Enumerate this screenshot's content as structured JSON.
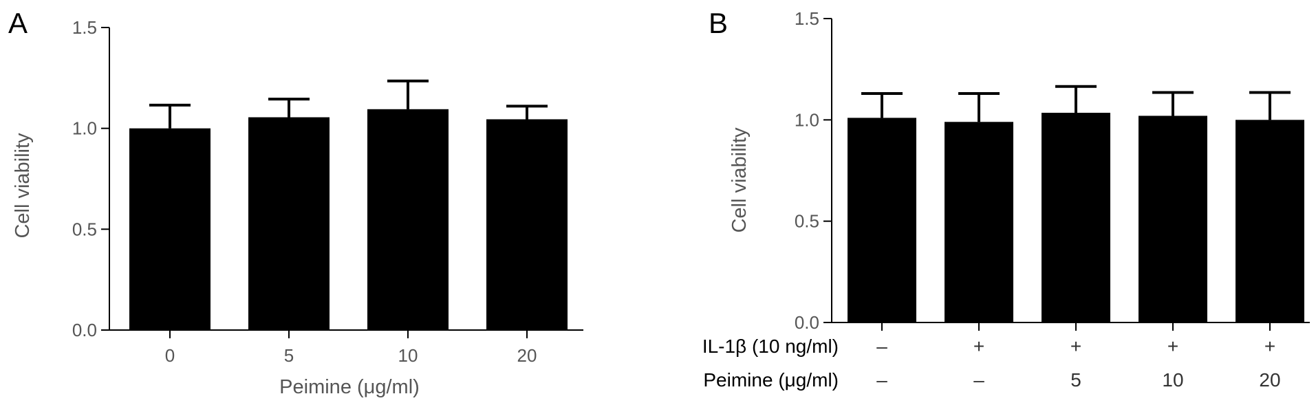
{
  "chart_data": [
    {
      "type": "bar",
      "panel": "A",
      "categories": [
        "0",
        "5",
        "10",
        "20"
      ],
      "values": [
        1.0,
        1.055,
        1.095,
        1.045
      ],
      "errors": [
        0.115,
        0.09,
        0.14,
        0.065
      ],
      "xlabel": "Peimine (μg/ml)",
      "ylabel": "Cell viability",
      "ylim": [
        0,
        1.5
      ],
      "yticks": [
        "0.0",
        "0.5",
        "1.0",
        "1.5"
      ],
      "color": "#000000"
    },
    {
      "type": "bar",
      "panel": "B",
      "values": [
        1.01,
        0.99,
        1.035,
        1.02,
        1.0
      ],
      "errors": [
        0.12,
        0.14,
        0.13,
        0.115,
        0.135
      ],
      "ylabel": "Cell viability",
      "ylim": [
        0,
        1.5
      ],
      "yticks": [
        "0.0",
        "0.5",
        "1.0",
        "1.5"
      ],
      "color": "#000000",
      "rows": [
        {
          "label": "IL-1β (10 ng/ml)",
          "values": [
            "–",
            "+",
            "+",
            "+",
            "+"
          ]
        },
        {
          "label": "Peimine (μg/ml)",
          "values": [
            "–",
            "–",
            "5",
            "10",
            "20"
          ]
        }
      ]
    }
  ]
}
